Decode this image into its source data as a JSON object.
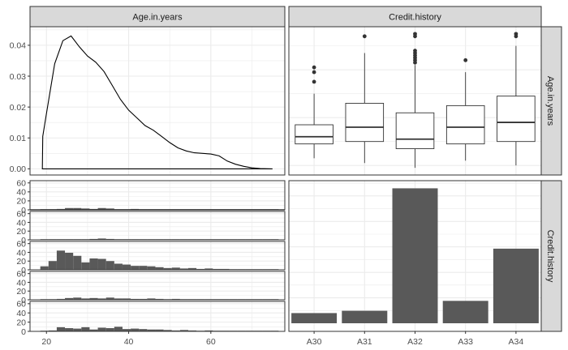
{
  "facets": {
    "col_strips": [
      "Age.in.years",
      "Credit.history"
    ],
    "row_strips": [
      "Age.in.years",
      "Credit.history"
    ]
  },
  "colors": {
    "panel_bg": "#ffffff",
    "grid": "#ebebeb",
    "border": "#333333",
    "strip_bg": "#d9d9d9",
    "fill": "#595959",
    "tick_text": "#4d4d4d",
    "line": "#000000"
  },
  "chart_data": [
    {
      "type": "line",
      "panel": "Age.in.years x Age.in.years (density)",
      "x": [
        19,
        19.1,
        20,
        22,
        24,
        26,
        28,
        30,
        32,
        34,
        36,
        38,
        40,
        42,
        44,
        46,
        48,
        50,
        52,
        54,
        56,
        58,
        60,
        62,
        64,
        66,
        68,
        70,
        72,
        75,
        75
      ],
      "y": [
        0.0,
        0.0105,
        0.018,
        0.034,
        0.0415,
        0.043,
        0.0395,
        0.0365,
        0.0345,
        0.0315,
        0.027,
        0.0225,
        0.019,
        0.0165,
        0.014,
        0.0125,
        0.0105,
        0.0085,
        0.0068,
        0.0058,
        0.0052,
        0.005,
        0.0048,
        0.0042,
        0.0025,
        0.0015,
        0.0008,
        0.0003,
        0.0001,
        0.0,
        0.0
      ],
      "xlim": [
        16,
        78
      ],
      "ylim": [
        -0.002,
        0.046
      ],
      "y_ticks": [
        "0.00",
        "0.01",
        "0.02",
        "0.03",
        "0.04"
      ],
      "grid": true
    },
    {
      "type": "box",
      "panel": "Credit.history x Age.in.years",
      "categories": [
        "A30",
        "A31",
        "A32",
        "A33",
        "A34"
      ],
      "boxes": [
        {
          "category": "A30",
          "lower_whisker": 23,
          "q1": 29,
          "median": 32,
          "q3": 37,
          "upper_whisker": 50,
          "outliers": [
            55,
            59,
            61
          ]
        },
        {
          "category": "A31",
          "lower_whisker": 21,
          "q1": 30,
          "median": 36,
          "q3": 46,
          "upper_whisker": 67,
          "outliers": [
            74
          ]
        },
        {
          "category": "A32",
          "lower_whisker": 19,
          "q1": 27,
          "median": 31,
          "q3": 42,
          "upper_whisker": 62,
          "outliers": [
            63,
            64,
            65,
            66,
            67,
            68,
            74,
            75
          ]
        },
        {
          "category": "A33",
          "lower_whisker": 22,
          "q1": 29,
          "median": 36,
          "q3": 45,
          "upper_whisker": 59,
          "outliers": [
            64
          ]
        },
        {
          "category": "A34",
          "lower_whisker": 20,
          "q1": 30,
          "median": 38,
          "q3": 49,
          "upper_whisker": 70,
          "outliers": [
            74,
            75
          ]
        }
      ],
      "ylim": [
        16,
        78
      ],
      "grid": true
    },
    {
      "type": "bar",
      "panel": "Age.in.years x Credit.history (histograms by credit history)",
      "bins": [
        19.5,
        21.5,
        23.5,
        25.5,
        27.5,
        29.5,
        31.5,
        33.5,
        35.5,
        37.5,
        39.5,
        41.5,
        43.5,
        45.5,
        47.5,
        49.5,
        51.5,
        53.5,
        55.5,
        57.5,
        59.5,
        61.5,
        63.5,
        65.5,
        67.5,
        69.5,
        71.5,
        73.5,
        75.5
      ],
      "bin_width": 2,
      "series": [
        {
          "name": "A30",
          "counts": [
            0,
            1,
            2,
            4,
            4,
            3,
            2,
            4,
            3,
            1,
            1,
            2,
            1,
            1,
            0,
            0,
            1,
            0,
            0,
            1,
            0,
            1,
            0,
            1,
            0,
            0,
            0,
            0,
            0
          ]
        },
        {
          "name": "A31",
          "counts": [
            0,
            1,
            1,
            1,
            0,
            1,
            2,
            3,
            2,
            1,
            1,
            1,
            0,
            1,
            1,
            0,
            1,
            0,
            1,
            1,
            0,
            1,
            0,
            1,
            0,
            0,
            0,
            0,
            0
          ]
        },
        {
          "name": "A32",
          "counts": [
            8,
            20,
            44,
            39,
            32,
            17,
            26,
            25,
            20,
            14,
            12,
            9,
            9,
            8,
            6,
            4,
            5,
            3,
            4,
            2,
            3,
            2,
            2,
            1,
            1,
            0,
            0,
            0,
            0
          ]
        },
        {
          "name": "A33",
          "counts": [
            0,
            1,
            2,
            4,
            5,
            3,
            4,
            3,
            5,
            3,
            3,
            2,
            2,
            3,
            2,
            1,
            2,
            1,
            1,
            1,
            1,
            1,
            1,
            0,
            0,
            0,
            0,
            0,
            0
          ]
        },
        {
          "name": "A34",
          "counts": [
            0,
            2,
            9,
            7,
            6,
            9,
            4,
            8,
            7,
            10,
            5,
            6,
            5,
            4,
            4,
            3,
            2,
            3,
            2,
            1,
            2,
            1,
            1,
            1,
            1,
            0,
            0,
            1,
            0
          ]
        }
      ],
      "y_ticks": [
        "0",
        "20",
        "40",
        "60"
      ],
      "x_ticks": [
        "20",
        "40",
        "60"
      ],
      "ylim": [
        0,
        65
      ],
      "xlim": [
        16,
        78
      ],
      "grid": true
    },
    {
      "type": "bar",
      "panel": "Credit.history x Credit.history (counts)",
      "categories": [
        "A30",
        "A31",
        "A32",
        "A33",
        "A34"
      ],
      "values": [
        40,
        49,
        530,
        88,
        293
      ],
      "ylim": [
        0,
        560
      ],
      "grid": true
    }
  ]
}
